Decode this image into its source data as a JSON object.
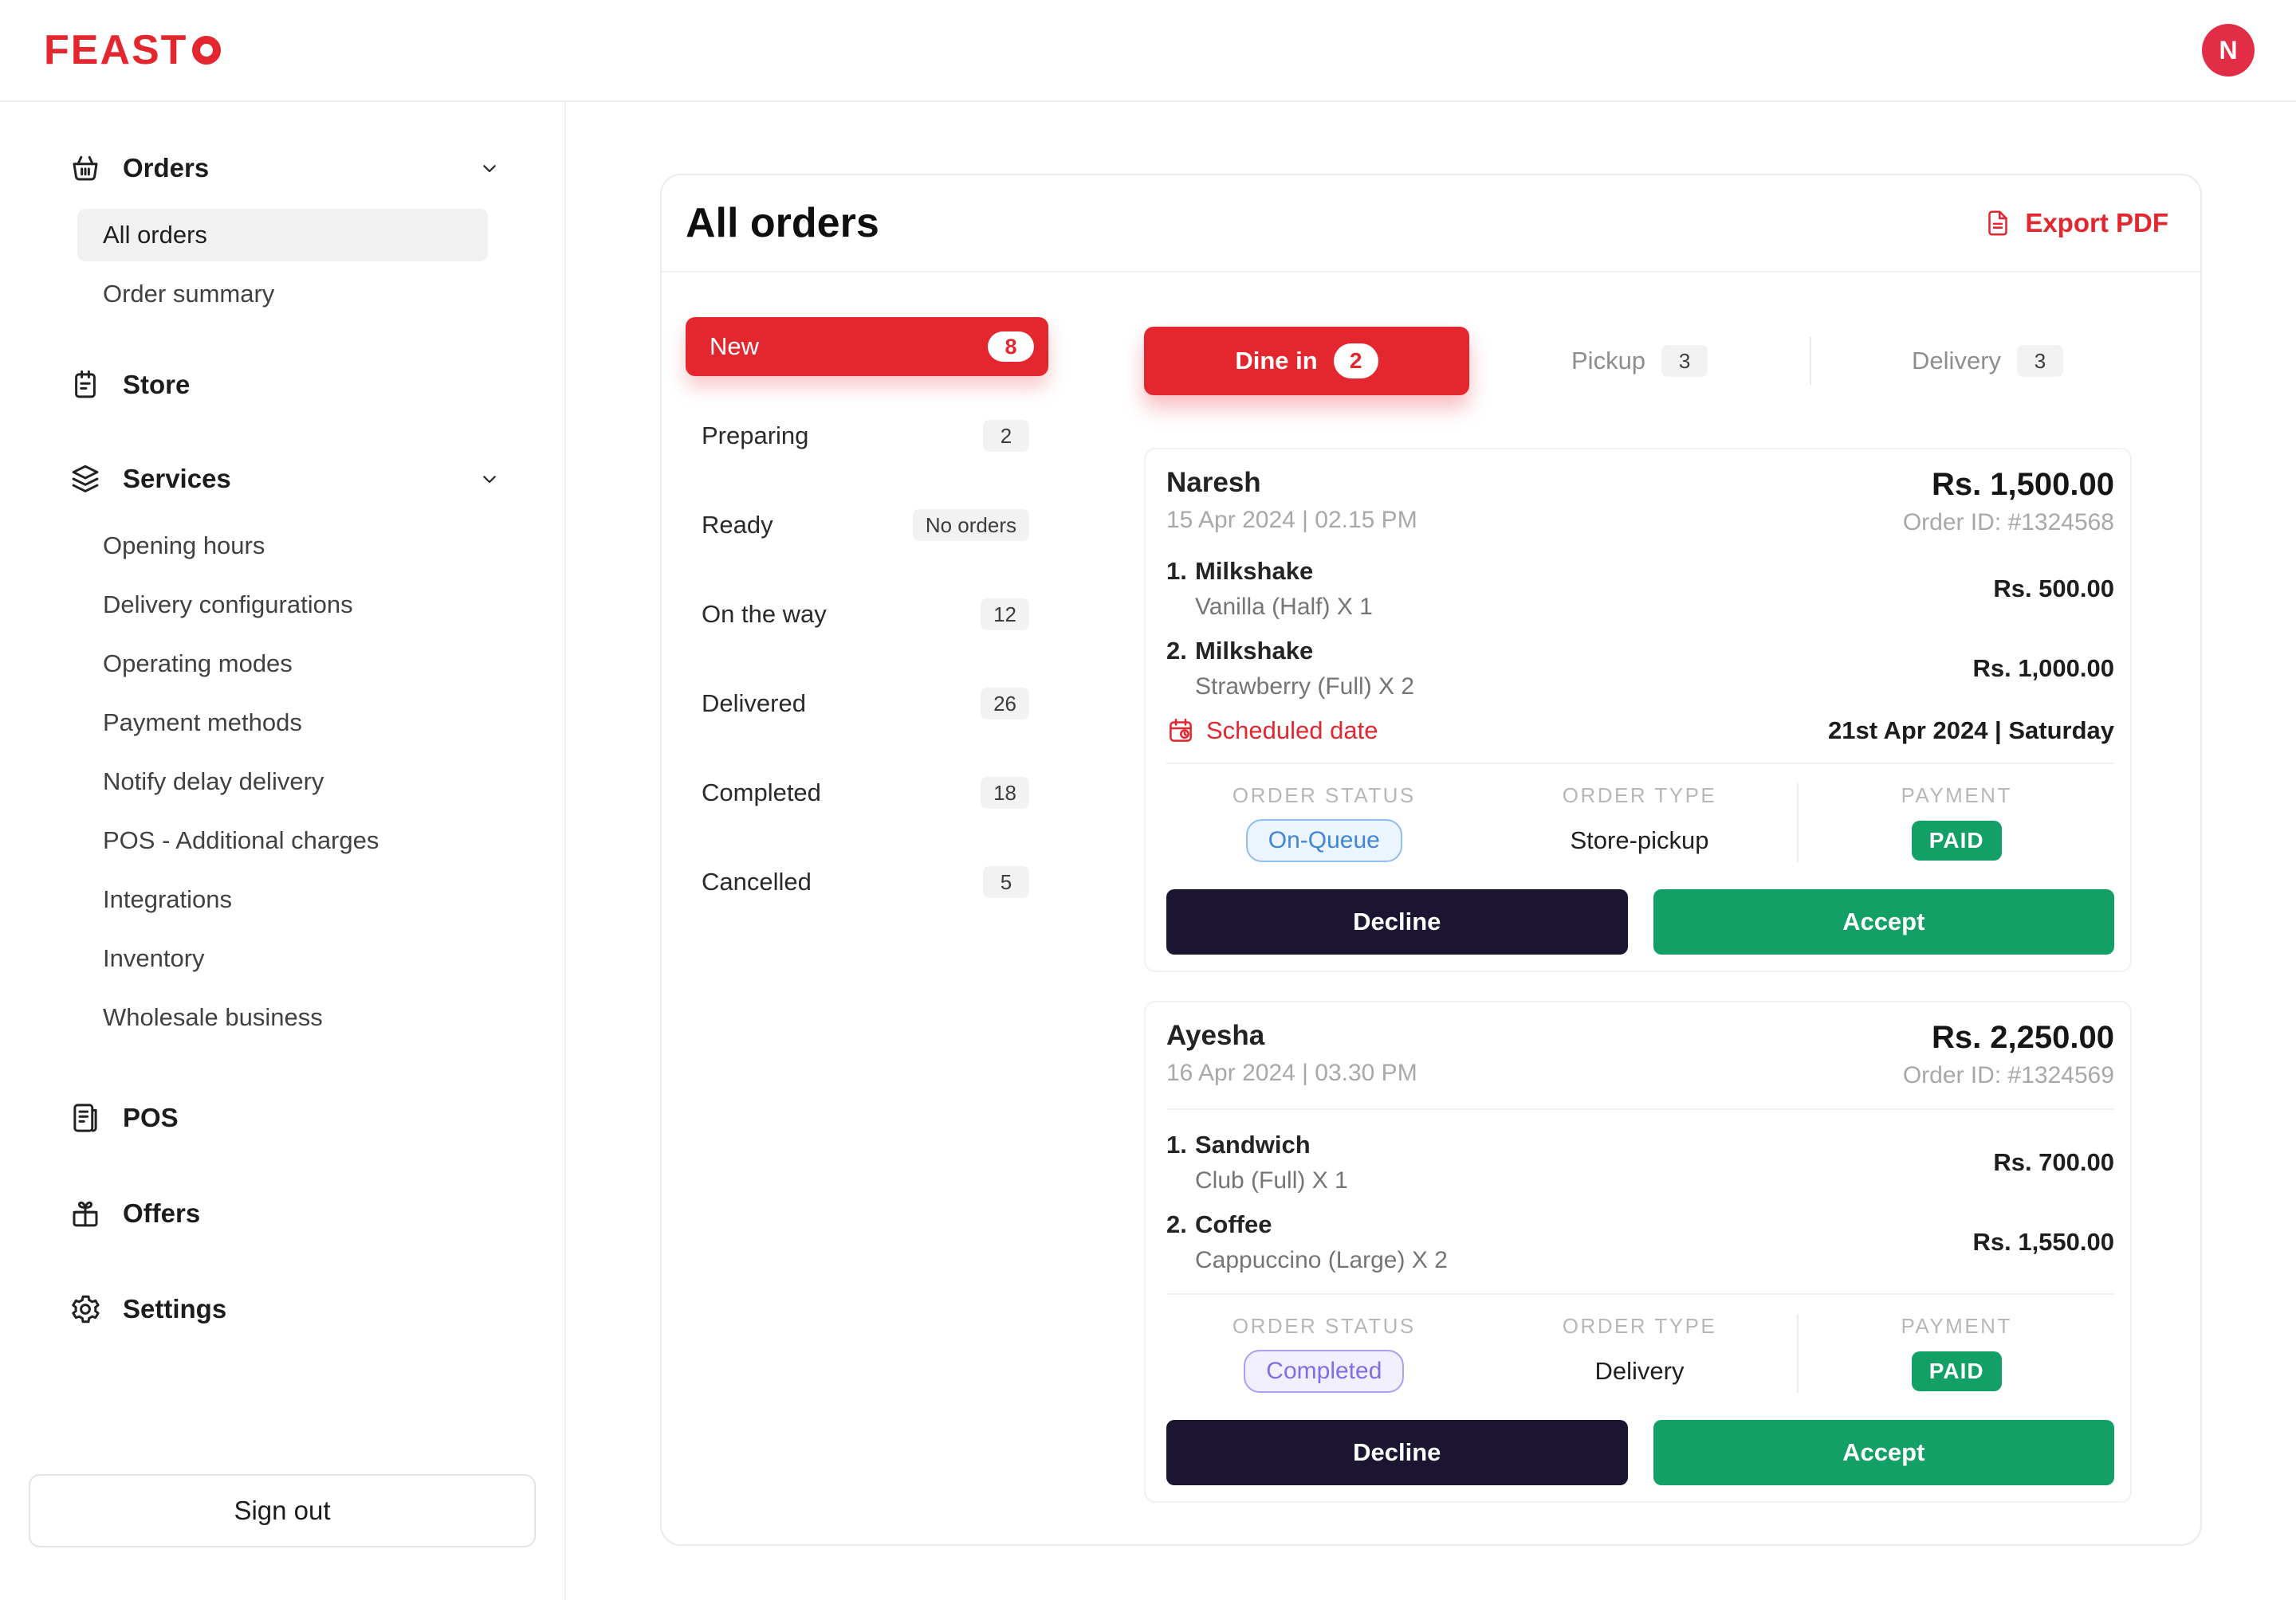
{
  "colors": {
    "brand_red": "#E4262F",
    "avatar_red": "#E22D46",
    "accept_green": "#12A066",
    "paid_green": "#12A066",
    "decline_dark": "#1C1532",
    "status_blue_text": "#4186D5",
    "status_blue_border": "#90BDF0",
    "status_blue_bg": "#EBF4FF",
    "status_purple_text": "#7F6FE6",
    "status_purple_border": "#AC9FF2",
    "status_purple_bg": "#F2EFFF",
    "pill_gray_bg": "#F2F2F2"
  },
  "brand": {
    "name": "FEASTO",
    "logo_text": "FEAST",
    "logo_o": "O"
  },
  "topbar": {
    "avatar_initial": "N"
  },
  "sidebar": {
    "groups": [
      {
        "id": "orders",
        "icon": "basket-icon",
        "label": "Orders",
        "expandable": true,
        "children": [
          {
            "label": "All orders",
            "active": true
          },
          {
            "label": "Order summary",
            "active": false
          }
        ]
      },
      {
        "id": "store",
        "icon": "store-icon",
        "label": "Store",
        "expandable": false
      },
      {
        "id": "services",
        "icon": "layers-icon",
        "label": "Services",
        "expandable": true,
        "children": [
          {
            "label": "Opening hours",
            "active": false
          },
          {
            "label": "Delivery configurations",
            "active": false
          },
          {
            "label": "Operating modes",
            "active": false
          },
          {
            "label": "Payment methods",
            "active": false
          },
          {
            "label": "Notify delay delivery",
            "active": false
          },
          {
            "label": "POS - Additional charges",
            "active": false
          },
          {
            "label": "Integrations",
            "active": false
          },
          {
            "label": "Inventory",
            "active": false
          },
          {
            "label": "Wholesale business",
            "active": false
          }
        ]
      },
      {
        "id": "pos",
        "icon": "pos-icon",
        "label": "POS",
        "expandable": false
      },
      {
        "id": "offers",
        "icon": "gift-icon",
        "label": "Offers",
        "expandable": false
      },
      {
        "id": "settings",
        "icon": "gear-icon",
        "label": "Settings",
        "expandable": false
      }
    ],
    "sign_out_label": "Sign out"
  },
  "main": {
    "title": "All orders",
    "export_pdf_label": "Export PDF",
    "status_filters": [
      {
        "label": "New",
        "count": "8",
        "active": true
      },
      {
        "label": "Preparing",
        "count": "2",
        "active": false
      },
      {
        "label": "Ready",
        "count": "No orders",
        "active": false
      },
      {
        "label": "On the way",
        "count": "12",
        "active": false
      },
      {
        "label": "Delivered",
        "count": "26",
        "active": false
      },
      {
        "label": "Completed",
        "count": "18",
        "active": false
      },
      {
        "label": "Cancelled",
        "count": "5",
        "active": false
      }
    ],
    "type_tabs": [
      {
        "label": "Dine in",
        "count": "2",
        "active": true
      },
      {
        "label": "Pickup",
        "count": "3",
        "active": false
      },
      {
        "label": "Delivery",
        "count": "3",
        "active": false
      }
    ],
    "orders": [
      {
        "customer": "Naresh",
        "datetime": "15 Apr 2024 | 02.15 PM",
        "total": "Rs. 1,500.00",
        "order_id": "Order ID: #1324568",
        "header_divider": false,
        "items": [
          {
            "index": "1.",
            "name": "Milkshake",
            "variant": "Vanilla (Half) X 1",
            "price": "Rs. 500.00"
          },
          {
            "index": "2.",
            "name": "Milkshake",
            "variant": "Strawberry (Full) X 2",
            "price": "Rs. 1,000.00"
          }
        ],
        "scheduled": {
          "label": "Scheduled date",
          "value": "21st Apr 2024 | Saturday"
        },
        "status": {
          "label": "ORDER STATUS",
          "value": "On-Queue",
          "variant": "blue"
        },
        "order_type": {
          "label": "ORDER TYPE",
          "value": "Store-pickup"
        },
        "payment": {
          "label": "PAYMENT",
          "value": "PAID"
        },
        "decline_label": "Decline",
        "accept_label": "Accept"
      },
      {
        "customer": "Ayesha",
        "datetime": "16 Apr 2024 | 03.30 PM",
        "total": "Rs. 2,250.00",
        "order_id": "Order ID: #1324569",
        "header_divider": true,
        "items": [
          {
            "index": "1.",
            "name": "Sandwich",
            "variant": "Club (Full) X 1",
            "price": "Rs. 700.00"
          },
          {
            "index": "2.",
            "name": "Coffee",
            "variant": "Cappuccino (Large) X 2",
            "price": "Rs. 1,550.00"
          }
        ],
        "scheduled": null,
        "status": {
          "label": "ORDER STATUS",
          "value": "Completed",
          "variant": "purple"
        },
        "order_type": {
          "label": "ORDER TYPE",
          "value": "Delivery"
        },
        "payment": {
          "label": "PAYMENT",
          "value": "PAID"
        },
        "decline_label": "Decline",
        "accept_label": "Accept"
      }
    ]
  }
}
